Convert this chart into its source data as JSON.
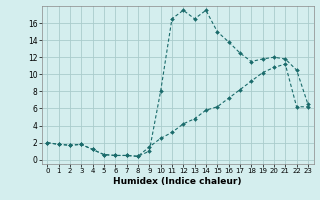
{
  "xlabel": "Humidex (Indice chaleur)",
  "background_color": "#d4eeee",
  "grid_color": "#aacccc",
  "line_color": "#1a6b6b",
  "xlim": [
    -0.5,
    23.5
  ],
  "ylim": [
    -0.5,
    18.0
  ],
  "xticks": [
    0,
    1,
    2,
    3,
    4,
    5,
    6,
    7,
    8,
    9,
    10,
    11,
    12,
    13,
    14,
    15,
    16,
    17,
    18,
    19,
    20,
    21,
    22,
    23
  ],
  "yticks": [
    0,
    2,
    4,
    6,
    8,
    10,
    12,
    14,
    16
  ],
  "curve1_x": [
    0,
    1,
    2,
    3,
    4,
    5,
    6,
    7,
    8,
    9,
    10,
    11,
    12,
    13,
    14,
    15,
    16,
    17,
    18,
    19,
    20,
    21,
    22,
    23
  ],
  "curve1_y": [
    2.0,
    1.8,
    1.7,
    1.8,
    1.2,
    0.6,
    0.5,
    0.5,
    0.4,
    1.0,
    8.0,
    16.5,
    17.5,
    16.5,
    17.5,
    15.0,
    13.8,
    12.5,
    11.5,
    11.8,
    12.0,
    11.8,
    10.5,
    6.5
  ],
  "curve2_x": [
    0,
    1,
    2,
    3,
    4,
    5,
    6,
    7,
    8,
    9,
    10,
    11,
    12,
    13,
    14,
    15,
    16,
    17,
    18,
    19,
    20,
    21,
    22,
    23
  ],
  "curve2_y": [
    2.0,
    1.8,
    1.7,
    1.8,
    1.2,
    0.6,
    0.5,
    0.5,
    0.4,
    1.5,
    2.5,
    3.2,
    4.2,
    4.8,
    5.8,
    6.2,
    7.2,
    8.2,
    9.2,
    10.2,
    10.8,
    11.2,
    6.2,
    6.2
  ]
}
